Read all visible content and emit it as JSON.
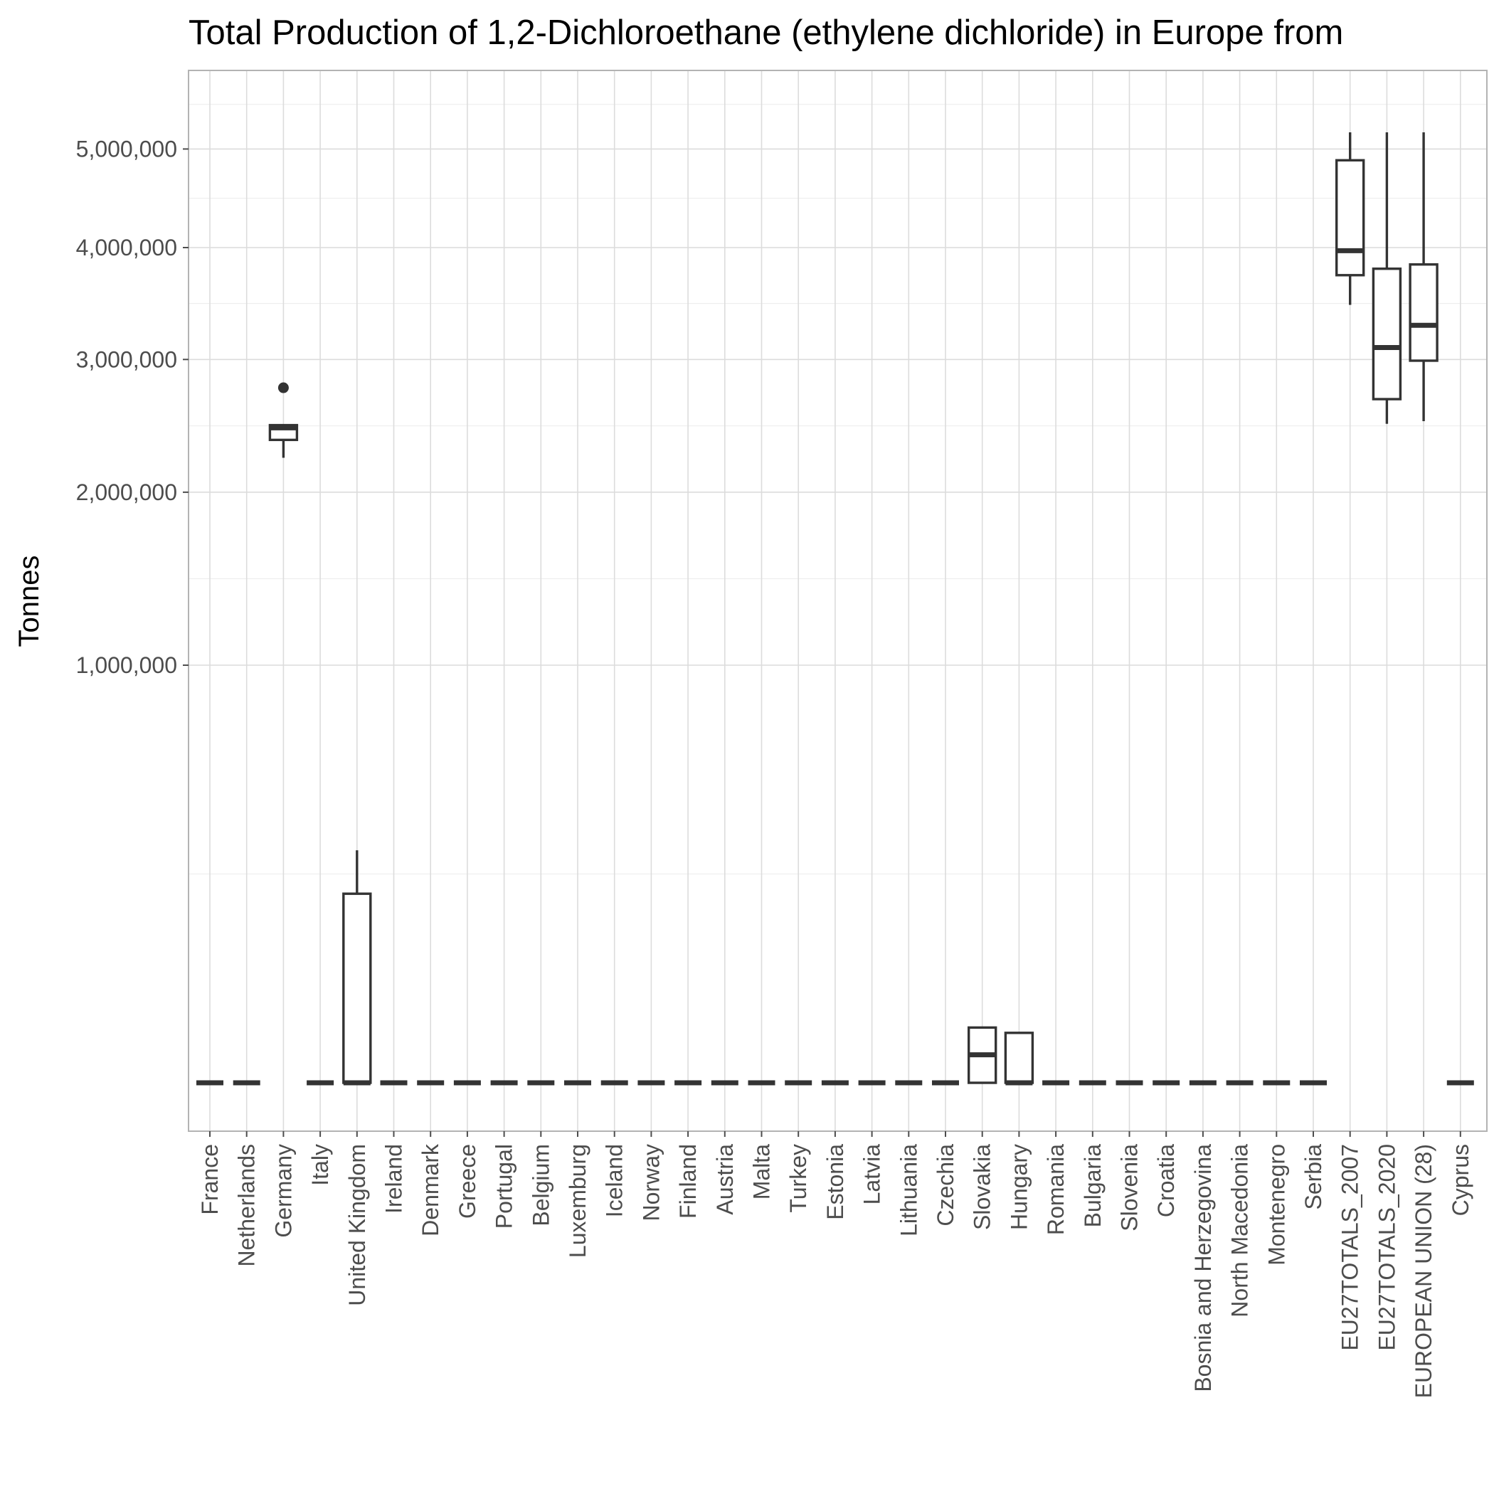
{
  "chart_data": {
    "type": "boxplot",
    "title": "Total Production of 1,2-Dichloroethane (ethylene dichloride) in Europe from",
    "xlabel": "",
    "ylabel": "Tonnes",
    "y_scale": "sqrt",
    "ylim": [
      0,
      5950000
    ],
    "y_ticks": [
      1000000,
      2000000,
      3000000,
      4000000,
      5000000
    ],
    "y_tick_labels": [
      "1,000,000",
      "2,000,000",
      "3,000,000",
      "4,000,000",
      "5,000,000"
    ],
    "grid": true,
    "legend": "none",
    "categories": [
      "France",
      "Netherlands",
      "Germany",
      "Italy",
      "United Kingdom",
      "Ireland",
      "Denmark",
      "Greece",
      "Portugal",
      "Belgium",
      "Luxemburg",
      "Iceland",
      "Norway",
      "Finland",
      "Austria",
      "Malta",
      "Turkey",
      "Estonia",
      "Latvia",
      "Lithuania",
      "Czechia",
      "Slovakia",
      "Hungary",
      "Romania",
      "Bulgaria",
      "Slovenia",
      "Croatia",
      "Bosnia and Herzegovina",
      "North Macedonia",
      "Montenegro",
      "Serbia",
      "EU27TOTALS_2007",
      "EU27TOTALS_2020",
      "EUROPEAN UNION (28)",
      "Cyprus"
    ],
    "boxes": [
      {
        "min": 0,
        "q1": 0,
        "median": 0,
        "q3": 0,
        "max": 0,
        "outliers": []
      },
      {
        "min": 0,
        "q1": 0,
        "median": 0,
        "q3": 0,
        "max": 0,
        "outliers": []
      },
      {
        "min": 2240000,
        "q1": 2370000,
        "median": 2460000,
        "q3": 2480000,
        "max": 2480000,
        "outliers": [
          2770000
        ]
      },
      {
        "min": 0,
        "q1": 0,
        "median": 0,
        "q3": 0,
        "max": 0,
        "outliers": []
      },
      {
        "min": 0,
        "q1": 0,
        "median": 0,
        "q3": 205000,
        "max": 310000,
        "outliers": []
      },
      {
        "min": 0,
        "q1": 0,
        "median": 0,
        "q3": 0,
        "max": 0,
        "outliers": []
      },
      {
        "min": 0,
        "q1": 0,
        "median": 0,
        "q3": 0,
        "max": 0,
        "outliers": []
      },
      {
        "min": 0,
        "q1": 0,
        "median": 0,
        "q3": 0,
        "max": 0,
        "outliers": []
      },
      {
        "min": 0,
        "q1": 0,
        "median": 0,
        "q3": 0,
        "max": 0,
        "outliers": []
      },
      {
        "min": 0,
        "q1": 0,
        "median": 0,
        "q3": 0,
        "max": 0,
        "outliers": []
      },
      {
        "min": 0,
        "q1": 0,
        "median": 0,
        "q3": 0,
        "max": 0,
        "outliers": []
      },
      {
        "min": 0,
        "q1": 0,
        "median": 0,
        "q3": 0,
        "max": 0,
        "outliers": []
      },
      {
        "min": 0,
        "q1": 0,
        "median": 0,
        "q3": 0,
        "max": 0,
        "outliers": []
      },
      {
        "min": 0,
        "q1": 0,
        "median": 0,
        "q3": 0,
        "max": 0,
        "outliers": []
      },
      {
        "min": 0,
        "q1": 0,
        "median": 0,
        "q3": 0,
        "max": 0,
        "outliers": []
      },
      {
        "min": 0,
        "q1": 0,
        "median": 0,
        "q3": 0,
        "max": 0,
        "outliers": []
      },
      {
        "min": 0,
        "q1": 0,
        "median": 0,
        "q3": 0,
        "max": 0,
        "outliers": []
      },
      {
        "min": 0,
        "q1": 0,
        "median": 0,
        "q3": 0,
        "max": 0,
        "outliers": []
      },
      {
        "min": 0,
        "q1": 0,
        "median": 0,
        "q3": 0,
        "max": 0,
        "outliers": []
      },
      {
        "min": 0,
        "q1": 0,
        "median": 0,
        "q3": 0,
        "max": 0,
        "outliers": []
      },
      {
        "min": 0,
        "q1": 0,
        "median": 0,
        "q3": 0,
        "max": 0,
        "outliers": []
      },
      {
        "min": 0,
        "q1": 0,
        "median": 4500,
        "q3": 17500,
        "max": 18000,
        "outliers": []
      },
      {
        "min": 0,
        "q1": 0,
        "median": 0,
        "q3": 14300,
        "max": 14300,
        "outliers": []
      },
      {
        "min": 0,
        "q1": 0,
        "median": 0,
        "q3": 0,
        "max": 0,
        "outliers": []
      },
      {
        "min": 0,
        "q1": 0,
        "median": 0,
        "q3": 0,
        "max": 0,
        "outliers": []
      },
      {
        "min": 0,
        "q1": 0,
        "median": 0,
        "q3": 0,
        "max": 0,
        "outliers": []
      },
      {
        "min": 0,
        "q1": 0,
        "median": 0,
        "q3": 0,
        "max": 0,
        "outliers": []
      },
      {
        "min": 0,
        "q1": 0,
        "median": 0,
        "q3": 0,
        "max": 0,
        "outliers": []
      },
      {
        "min": 0,
        "q1": 0,
        "median": 0,
        "q3": 0,
        "max": 0,
        "outliers": []
      },
      {
        "min": 0,
        "q1": 0,
        "median": 0,
        "q3": 0,
        "max": 0,
        "outliers": []
      },
      {
        "min": 0,
        "q1": 0,
        "median": 0,
        "q3": 0,
        "max": 0,
        "outliers": []
      },
      {
        "min": 3470000,
        "q1": 3740000,
        "median": 3970000,
        "q3": 4880000,
        "max": 5180000,
        "outliers": []
      },
      {
        "min": 2490000,
        "q1": 2680000,
        "median": 3100000,
        "q3": 3800000,
        "max": 5180000,
        "outliers": []
      },
      {
        "min": 2510000,
        "q1": 2990000,
        "median": 3290000,
        "q3": 3840000,
        "max": 5180000,
        "outliers": []
      },
      {
        "min": 0,
        "q1": 0,
        "median": 0,
        "q3": 0,
        "max": 0,
        "outliers": []
      }
    ],
    "missing_categories": [
      "Netherlands"
    ]
  }
}
